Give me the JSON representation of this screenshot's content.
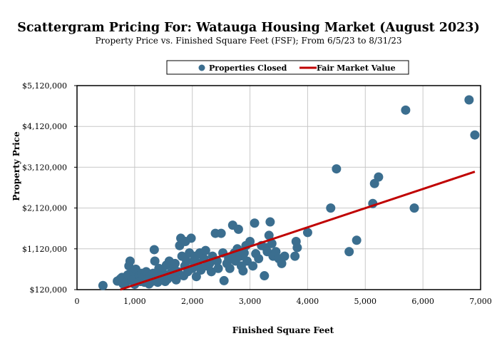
{
  "chart_data": {
    "type": "scatter",
    "title": "Scattergram Pricing For: Watauga Housing Market (August 2023)",
    "subtitle": "Property Price vs. Finished Square Feet (FSF); From 6/5/23 to 8/31/23",
    "xlabel": "Finished Square Feet",
    "ylabel": "Property Price",
    "xlim": [
      0,
      7000
    ],
    "ylim": [
      120000,
      5120000
    ],
    "xticks": [
      0,
      1000,
      2000,
      3000,
      4000,
      5000,
      6000,
      7000
    ],
    "xtick_labels": [
      "0",
      "1,000",
      "2,000",
      "3,000",
      "4,000",
      "5,000",
      "6,000",
      "7,000"
    ],
    "yticks": [
      120000,
      1120000,
      2120000,
      3120000,
      4120000,
      5120000
    ],
    "ytick_labels": [
      "$120,000",
      "$1,120,000",
      "$2,120,000",
      "$3,120,000",
      "$4,120,000",
      "$5,120,000"
    ],
    "grid": true,
    "legend_position": "top-center",
    "series": [
      {
        "name": "Properties Closed",
        "kind": "points",
        "color": "#3b6e8f",
        "points": [
          [
            450,
            220000
          ],
          [
            700,
            330000
          ],
          [
            750,
            380000
          ],
          [
            800,
            260000
          ],
          [
            780,
            420000
          ],
          [
            850,
            300000
          ],
          [
            880,
            480000
          ],
          [
            900,
            700000
          ],
          [
            920,
            820000
          ],
          [
            950,
            350000
          ],
          [
            980,
            560000
          ],
          [
            1000,
            250000
          ],
          [
            1020,
            620000
          ],
          [
            1050,
            380000
          ],
          [
            1080,
            460000
          ],
          [
            1100,
            320000
          ],
          [
            1120,
            520000
          ],
          [
            1150,
            420000
          ],
          [
            1170,
            300000
          ],
          [
            1200,
            560000
          ],
          [
            1220,
            380000
          ],
          [
            1250,
            260000
          ],
          [
            1270,
            460000
          ],
          [
            1300,
            320000
          ],
          [
            1320,
            520000
          ],
          [
            1340,
            1100000
          ],
          [
            1350,
            820000
          ],
          [
            1380,
            440000
          ],
          [
            1400,
            300000
          ],
          [
            1420,
            640000
          ],
          [
            1450,
            380000
          ],
          [
            1480,
            560000
          ],
          [
            1500,
            460000
          ],
          [
            1530,
            320000
          ],
          [
            1550,
            720000
          ],
          [
            1570,
            380000
          ],
          [
            1600,
            820000
          ],
          [
            1620,
            520000
          ],
          [
            1650,
            440000
          ],
          [
            1680,
            640000
          ],
          [
            1700,
            760000
          ],
          [
            1720,
            360000
          ],
          [
            1750,
            560000
          ],
          [
            1780,
            1200000
          ],
          [
            1800,
            1380000
          ],
          [
            1820,
            940000
          ],
          [
            1850,
            460000
          ],
          [
            1870,
            700000
          ],
          [
            1880,
            1300000
          ],
          [
            1900,
            820000
          ],
          [
            1920,
            560000
          ],
          [
            1950,
            1020000
          ],
          [
            1980,
            1380000
          ],
          [
            2000,
            640000
          ],
          [
            2020,
            820000
          ],
          [
            2050,
            940000
          ],
          [
            2070,
            440000
          ],
          [
            2100,
            760000
          ],
          [
            2130,
            1020000
          ],
          [
            2150,
            600000
          ],
          [
            2200,
            880000
          ],
          [
            2230,
            1080000
          ],
          [
            2250,
            700000
          ],
          [
            2300,
            760000
          ],
          [
            2330,
            560000
          ],
          [
            2350,
            940000
          ],
          [
            2400,
            1500000
          ],
          [
            2430,
            820000
          ],
          [
            2450,
            640000
          ],
          [
            2500,
            1500000
          ],
          [
            2530,
            1020000
          ],
          [
            2550,
            340000
          ],
          [
            2600,
            760000
          ],
          [
            2630,
            880000
          ],
          [
            2650,
            640000
          ],
          [
            2700,
            1700000
          ],
          [
            2730,
            1020000
          ],
          [
            2750,
            820000
          ],
          [
            2780,
            1120000
          ],
          [
            2800,
            1600000
          ],
          [
            2830,
            940000
          ],
          [
            2850,
            700000
          ],
          [
            2880,
            580000
          ],
          [
            2900,
            1020000
          ],
          [
            2930,
            1200000
          ],
          [
            2950,
            820000
          ],
          [
            3000,
            1300000
          ],
          [
            3050,
            700000
          ],
          [
            3080,
            1750000
          ],
          [
            3100,
            1000000
          ],
          [
            3150,
            880000
          ],
          [
            3200,
            1200000
          ],
          [
            3250,
            460000
          ],
          [
            3280,
            1150000
          ],
          [
            3300,
            1050000
          ],
          [
            3330,
            1450000
          ],
          [
            3350,
            1780000
          ],
          [
            3380,
            1250000
          ],
          [
            3400,
            940000
          ],
          [
            3450,
            1050000
          ],
          [
            3500,
            880000
          ],
          [
            3550,
            760000
          ],
          [
            3600,
            940000
          ],
          [
            3800,
            1300000
          ],
          [
            3820,
            1150000
          ],
          [
            3780,
            940000
          ],
          [
            4000,
            1520000
          ],
          [
            4400,
            2120000
          ],
          [
            4500,
            3080000
          ],
          [
            4720,
            1050000
          ],
          [
            4850,
            1330000
          ],
          [
            5130,
            2230000
          ],
          [
            5160,
            2720000
          ],
          [
            5230,
            2880000
          ],
          [
            5700,
            4520000
          ],
          [
            5850,
            2120000
          ],
          [
            6800,
            4770000
          ],
          [
            6900,
            3910000
          ]
        ]
      },
      {
        "name": "Fair Market Value",
        "kind": "line",
        "color": "#c00000",
        "points": [
          [
            750,
            120000
          ],
          [
            6900,
            3010000
          ]
        ]
      }
    ]
  }
}
